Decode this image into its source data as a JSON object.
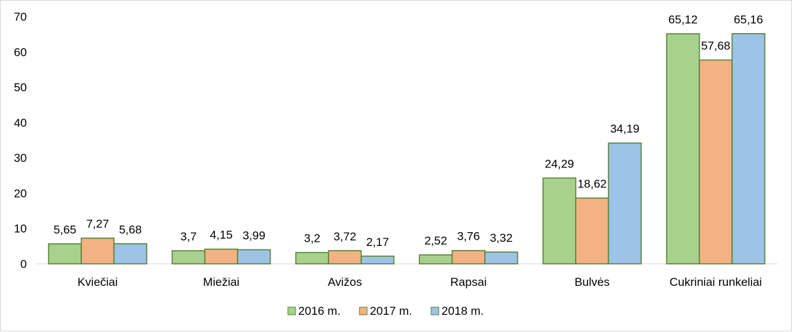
{
  "chart_data": {
    "type": "bar",
    "categories": [
      "Kviečiai",
      "Miežiai",
      "Avižos",
      "Rapsai",
      "Bulvės",
      "Cukriniai runkeliai"
    ],
    "series": [
      {
        "name": "2016 m.",
        "values": [
          5.65,
          3.7,
          3.2,
          2.52,
          24.29,
          65.12
        ],
        "labels": [
          "5,65",
          "3,7",
          "3,2",
          "2,52",
          "24,29",
          "65,12"
        ],
        "color": "#a9d18e",
        "stroke": "#548235"
      },
      {
        "name": "2017 m.",
        "values": [
          7.27,
          4.15,
          3.72,
          3.76,
          18.62,
          57.68
        ],
        "labels": [
          "7,27",
          "4,15",
          "3,72",
          "3,76",
          "18,62",
          "57,68"
        ],
        "color": "#f4b183",
        "stroke": "#548235"
      },
      {
        "name": "2018 m.",
        "values": [
          5.68,
          3.99,
          2.17,
          3.32,
          34.19,
          65.16
        ],
        "labels": [
          "5,68",
          "3,99",
          "2,17",
          "3,32",
          "34,19",
          "65,16"
        ],
        "color": "#9dc3e6",
        "stroke": "#548235"
      }
    ],
    "yticks": [
      "0",
      "10",
      "20",
      "30",
      "40",
      "50",
      "60",
      "70"
    ],
    "ylim": [
      0,
      70
    ],
    "grid": false,
    "legend": "bottom-center"
  }
}
